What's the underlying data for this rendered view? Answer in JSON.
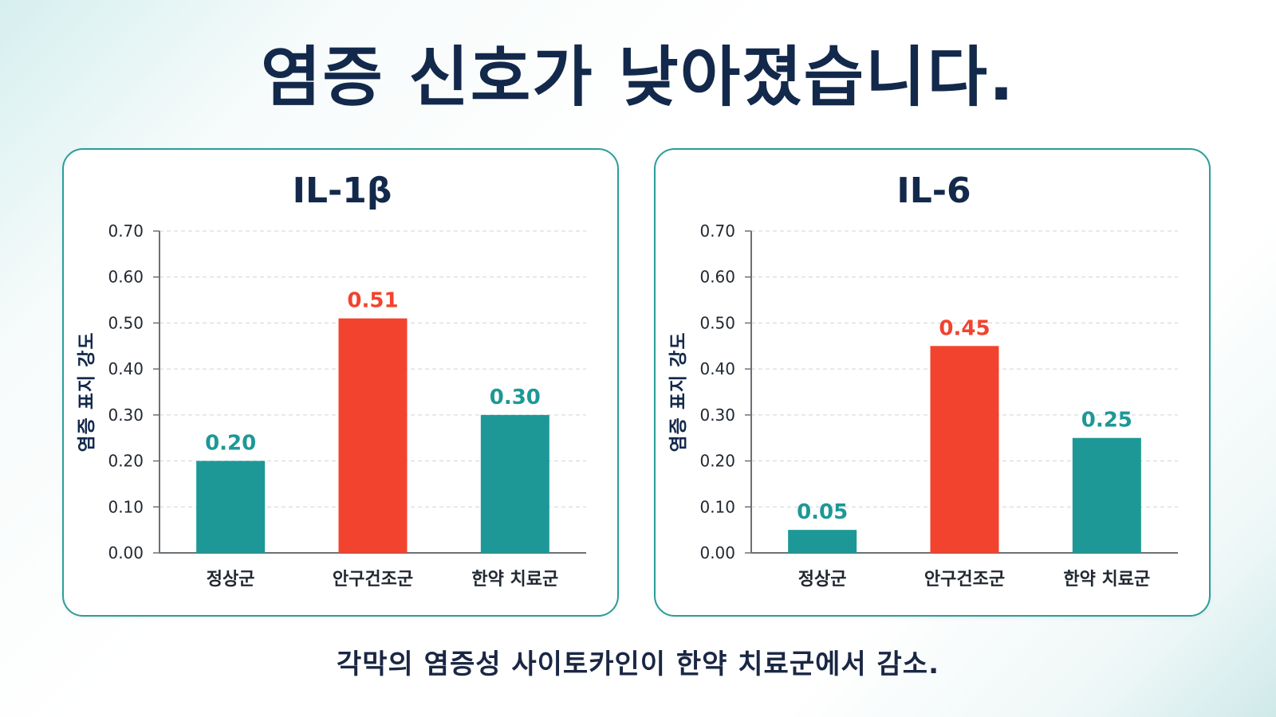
{
  "title": "염증 신호가 낮아졌습니다.",
  "caption": "각막의 염증성 사이토카인이 한약 치료군에서 감소.",
  "colors": {
    "teal": "#1d9896",
    "red": "#f2432e",
    "navy": "#13294b",
    "frame": "#2a9d9a"
  },
  "chart_data": [
    {
      "type": "bar",
      "title": "IL-1β",
      "ylabel": "염증 표지 강도",
      "ylim": [
        0,
        0.7
      ],
      "yticks": [
        "0.00",
        "0.10",
        "0.20",
        "0.30",
        "0.40",
        "0.50",
        "0.60",
        "0.70"
      ],
      "grid": true,
      "categories": [
        "정상군",
        "안구건조군",
        "한약 치료군"
      ],
      "values": [
        0.2,
        0.51,
        0.3
      ],
      "value_labels": [
        "0.20",
        "0.51",
        "0.30"
      ],
      "bar_colors": [
        "teal",
        "red",
        "teal"
      ]
    },
    {
      "type": "bar",
      "title": "IL-6",
      "ylabel": "염증 표지 강도",
      "ylim": [
        0,
        0.7
      ],
      "yticks": [
        "0.00",
        "0.10",
        "0.20",
        "0.30",
        "0.40",
        "0.50",
        "0.60",
        "0.70"
      ],
      "grid": true,
      "categories": [
        "정상군",
        "안구건조군",
        "한약 치료군"
      ],
      "values": [
        0.05,
        0.45,
        0.25
      ],
      "value_labels": [
        "0.05",
        "0.45",
        "0.25"
      ],
      "bar_colors": [
        "teal",
        "red",
        "teal"
      ]
    }
  ]
}
